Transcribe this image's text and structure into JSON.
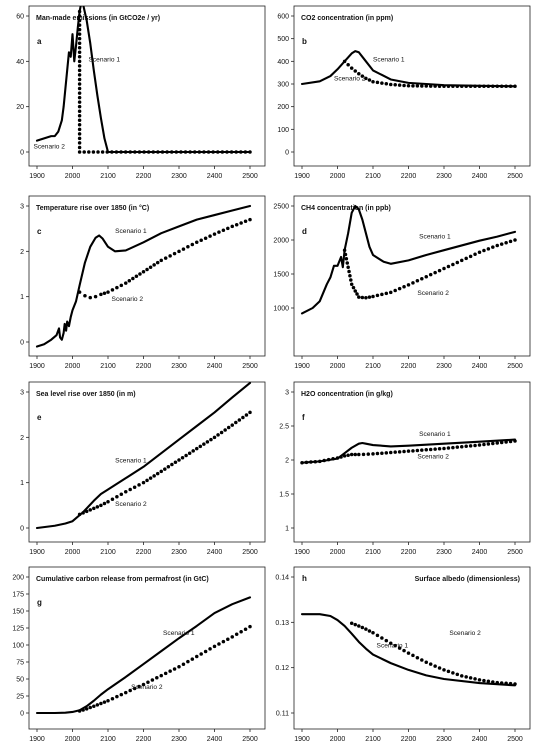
{
  "chart_data": [
    {
      "type": "line",
      "title": "Man-made emissions (in GtCO2e / yr)",
      "panel": "a",
      "xlim": [
        1900,
        2500
      ],
      "ylim": [
        0,
        60
      ],
      "xticks": [
        1900,
        2000,
        2100,
        2200,
        2300,
        2400,
        2500
      ],
      "yticks": [
        0,
        20,
        40,
        60
      ],
      "series": [
        {
          "name": "Scenario 1",
          "style": "line",
          "x": [
            1900,
            1920,
            1940,
            1950,
            1960,
            1970,
            1975,
            1980,
            1985,
            1990,
            1995,
            2000,
            2005,
            2010,
            2015,
            2020,
            2025,
            2030,
            2040,
            2050,
            2060,
            2070,
            2080,
            2090,
            2100,
            2500
          ],
          "y": [
            5,
            6,
            7,
            7,
            9,
            14,
            20,
            28,
            36,
            44,
            42,
            52,
            40,
            47,
            55,
            62,
            66,
            65,
            58,
            48,
            36,
            25,
            15,
            6,
            0,
            0
          ]
        },
        {
          "name": "Scenario 2",
          "style": "dotted",
          "x": [
            2020,
            2020,
            2500
          ],
          "y": [
            62,
            0,
            0
          ]
        }
      ],
      "annotations": [
        {
          "text": "Scenario 1",
          "x": 2045,
          "y": 40
        },
        {
          "text": "Scenario 2",
          "x": 1890,
          "y": 1.5
        }
      ]
    },
    {
      "type": "line",
      "title": "CO2 concentration (in ppm)",
      "panel": "b",
      "xlim": [
        1900,
        2500
      ],
      "ylim": [
        0,
        600
      ],
      "xticks": [
        1900,
        2000,
        2100,
        2200,
        2300,
        2400,
        2500
      ],
      "yticks": [
        0,
        100,
        200,
        300,
        400,
        500,
        600
      ],
      "series": [
        {
          "name": "Scenario 1",
          "style": "line",
          "x": [
            1900,
            1950,
            1980,
            2000,
            2020,
            2040,
            2050,
            2060,
            2075,
            2100,
            2150,
            2200,
            2300,
            2400,
            2500
          ],
          "y": [
            300,
            312,
            335,
            365,
            400,
            435,
            445,
            440,
            410,
            360,
            320,
            305,
            295,
            292,
            290
          ]
        },
        {
          "name": "Scenario 2",
          "style": "dotted",
          "x": [
            2020,
            2040,
            2060,
            2080,
            2100,
            2150,
            2200,
            2300,
            2400,
            2500
          ],
          "y": [
            400,
            370,
            345,
            325,
            310,
            298,
            292,
            290,
            290,
            290
          ]
        }
      ],
      "annotations": [
        {
          "text": "Scenario 1",
          "x": 2100,
          "y": 400
        },
        {
          "text": "Scenario 2",
          "x": 1990,
          "y": 315
        }
      ]
    },
    {
      "type": "line",
      "title": "Temperature rise over 1850 (in °C)",
      "panel": "c",
      "xlim": [
        1900,
        2500
      ],
      "ylim": [
        0,
        3
      ],
      "xticks": [
        1900,
        2000,
        2100,
        2200,
        2300,
        2400,
        2500
      ],
      "yticks": [
        0,
        1,
        2,
        3
      ],
      "series": [
        {
          "name": "Scenario 1",
          "style": "line",
          "x": [
            1900,
            1920,
            1940,
            1955,
            1962,
            1965,
            1970,
            1975,
            1978,
            1982,
            1985,
            1990,
            1995,
            2000,
            2010,
            2020,
            2035,
            2050,
            2065,
            2075,
            2085,
            2100,
            2120,
            2150,
            2200,
            2250,
            2300,
            2350,
            2400,
            2450,
            2500
          ],
          "y": [
            -0.1,
            -0.05,
            0.05,
            0.15,
            0.3,
            0.1,
            0.05,
            0.2,
            0.4,
            0.25,
            0.45,
            0.35,
            0.55,
            0.7,
            0.9,
            1.25,
            1.75,
            2.1,
            2.3,
            2.35,
            2.28,
            2.1,
            2.0,
            2.02,
            2.2,
            2.4,
            2.55,
            2.7,
            2.8,
            2.9,
            3.0
          ]
        },
        {
          "name": "Scenario 2",
          "style": "dotted",
          "x": [
            2020,
            2035,
            2050,
            2065,
            2080,
            2100,
            2150,
            2200,
            2250,
            2300,
            2350,
            2400,
            2450,
            2500
          ],
          "y": [
            1.1,
            1.02,
            0.98,
            1.0,
            1.05,
            1.1,
            1.3,
            1.55,
            1.8,
            2.0,
            2.2,
            2.38,
            2.55,
            2.7
          ]
        }
      ],
      "annotations": [
        {
          "text": "Scenario 1",
          "x": 2120,
          "y": 2.4
        },
        {
          "text": "Scenario 2",
          "x": 2110,
          "y": 0.9
        }
      ]
    },
    {
      "type": "line",
      "title": "CH4 concentration (in ppb)",
      "panel": "d",
      "xlim": [
        1900,
        2500
      ],
      "ylim": [
        500,
        2500
      ],
      "xticks": [
        1900,
        2000,
        2100,
        2200,
        2300,
        2400,
        2500
      ],
      "yticks": [
        1000,
        1500,
        2000,
        2500
      ],
      "series": [
        {
          "name": "Scenario 1",
          "style": "line",
          "x": [
            1900,
            1930,
            1950,
            1970,
            1980,
            1990,
            2000,
            2010,
            2015,
            2020,
            2030,
            2040,
            2050,
            2060,
            2070,
            2080,
            2090,
            2100,
            2130,
            2150,
            2200,
            2250,
            2300,
            2350,
            2400,
            2450,
            2500
          ],
          "y": [
            920,
            1000,
            1100,
            1350,
            1450,
            1620,
            1620,
            1750,
            1600,
            1850,
            2100,
            2400,
            2500,
            2450,
            2300,
            2100,
            1900,
            1780,
            1680,
            1650,
            1700,
            1780,
            1850,
            1920,
            1990,
            2050,
            2120
          ]
        },
        {
          "name": "Scenario 2",
          "style": "dotted",
          "x": [
            2020,
            2030,
            2040,
            2050,
            2060,
            2080,
            2100,
            2150,
            2200,
            2250,
            2300,
            2350,
            2400,
            2450,
            2500
          ],
          "y": [
            1850,
            1600,
            1350,
            1250,
            1160,
            1150,
            1170,
            1230,
            1340,
            1460,
            1580,
            1700,
            1820,
            1920,
            2000
          ]
        }
      ],
      "annotations": [
        {
          "text": "Scenario 1",
          "x": 2230,
          "y": 2020
        },
        {
          "text": "Scenario 2",
          "x": 2225,
          "y": 1190
        }
      ]
    },
    {
      "type": "line",
      "title": "Sea level rise over 1850 (in m)",
      "panel": "e",
      "xlim": [
        1900,
        2500
      ],
      "ylim": [
        0,
        3
      ],
      "xticks": [
        1900,
        2000,
        2100,
        2200,
        2300,
        2400,
        2500
      ],
      "yticks": [
        0,
        1,
        2,
        3
      ],
      "series": [
        {
          "name": "Scenario 1",
          "style": "line",
          "x": [
            1900,
            1950,
            1980,
            2000,
            2030,
            2060,
            2080,
            2100,
            2150,
            2200,
            2250,
            2300,
            2350,
            2400,
            2450,
            2500
          ],
          "y": [
            0.0,
            0.05,
            0.1,
            0.15,
            0.35,
            0.6,
            0.75,
            0.85,
            1.1,
            1.35,
            1.65,
            1.95,
            2.25,
            2.55,
            2.88,
            3.2
          ]
        },
        {
          "name": "Scenario 2",
          "style": "dotted",
          "x": [
            2020,
            2050,
            2080,
            2100,
            2150,
            2200,
            2250,
            2300,
            2350,
            2400,
            2450,
            2500
          ],
          "y": [
            0.3,
            0.4,
            0.5,
            0.58,
            0.8,
            1.0,
            1.25,
            1.5,
            1.75,
            2.0,
            2.27,
            2.55
          ]
        }
      ],
      "annotations": [
        {
          "text": "Scenario 1",
          "x": 2120,
          "y": 1.45
        },
        {
          "text": "Scenario 2",
          "x": 2120,
          "y": 0.48
        }
      ]
    },
    {
      "type": "line",
      "title": "H2O concentration (in g/kg)",
      "panel": "f",
      "xlim": [
        1900,
        2500
      ],
      "ylim": [
        1.0,
        3.0
      ],
      "xticks": [
        1900,
        2000,
        2100,
        2200,
        2300,
        2400,
        2500
      ],
      "yticks": [
        1.0,
        1.5,
        2.0,
        2.5,
        3.0
      ],
      "series": [
        {
          "name": "Scenario 1",
          "style": "line",
          "x": [
            1900,
            1950,
            2000,
            2020,
            2040,
            2060,
            2070,
            2080,
            2100,
            2150,
            2200,
            2300,
            2400,
            2500
          ],
          "y": [
            1.96,
            1.98,
            2.02,
            2.1,
            2.18,
            2.24,
            2.25,
            2.24,
            2.22,
            2.2,
            2.21,
            2.24,
            2.27,
            2.3
          ]
        },
        {
          "name": "Scenario 2",
          "style": "dotted",
          "x": [
            1900,
            1950,
            2000,
            2020,
            2040,
            2060,
            2100,
            2150,
            2200,
            2300,
            2400,
            2500
          ],
          "y": [
            1.96,
            1.98,
            2.03,
            2.06,
            2.08,
            2.08,
            2.09,
            2.11,
            2.13,
            2.17,
            2.22,
            2.28
          ]
        }
      ],
      "annotations": [
        {
          "text": "Scenario 1",
          "x": 2230,
          "y": 2.35
        },
        {
          "text": "Scenario 2",
          "x": 2225,
          "y": 2.02
        }
      ]
    },
    {
      "type": "line",
      "title": "Cumulative carbon release from permafrost (in GtC)",
      "panel": "g",
      "xlim": [
        1900,
        2500
      ],
      "ylim": [
        0,
        200
      ],
      "xticks": [
        1900,
        2000,
        2100,
        2200,
        2300,
        2400,
        2500
      ],
      "yticks": [
        0,
        25,
        50,
        75,
        100,
        125,
        150,
        175,
        200
      ],
      "series": [
        {
          "name": "Scenario 1",
          "style": "line",
          "x": [
            1900,
            1950,
            1980,
            2000,
            2020,
            2040,
            2060,
            2080,
            2100,
            2150,
            2200,
            2250,
            2300,
            2350,
            2400,
            2450,
            2500
          ],
          "y": [
            0,
            0,
            0.5,
            1.5,
            4,
            10,
            18,
            27,
            35,
            53,
            72,
            91,
            110,
            128,
            147,
            160,
            170
          ]
        },
        {
          "name": "Scenario 2",
          "style": "dotted",
          "x": [
            2020,
            2040,
            2060,
            2080,
            2100,
            2150,
            2200,
            2250,
            2300,
            2350,
            2400,
            2450,
            2500
          ],
          "y": [
            3,
            6,
            10,
            14,
            18,
            30,
            42,
            55,
            68,
            83,
            98,
            112,
            127
          ]
        }
      ],
      "annotations": [
        {
          "text": "Scenario 1",
          "x": 2255,
          "y": 115
        },
        {
          "text": "Scenario 2",
          "x": 2165,
          "y": 35
        }
      ]
    },
    {
      "type": "line",
      "title": "Surface albedo (dimensionless)",
      "panel": "h",
      "xlim": [
        1900,
        2500
      ],
      "ylim": [
        0.11,
        0.14
      ],
      "xticks": [
        1900,
        2000,
        2100,
        2200,
        2300,
        2400,
        2500
      ],
      "yticks": [
        0.11,
        0.12,
        0.13,
        0.14
      ],
      "series": [
        {
          "name": "Scenario 1",
          "style": "line",
          "x": [
            1900,
            1950,
            1980,
            2000,
            2020,
            2040,
            2060,
            2080,
            2100,
            2150,
            2200,
            2250,
            2300,
            2400,
            2500
          ],
          "y": [
            0.1318,
            0.1318,
            0.1314,
            0.1305,
            0.1292,
            0.1275,
            0.1257,
            0.1242,
            0.1229,
            0.121,
            0.1195,
            0.1183,
            0.1175,
            0.1166,
            0.1161
          ]
        },
        {
          "name": "Scenario 2",
          "style": "dotted",
          "x": [
            2040,
            2060,
            2080,
            2100,
            2150,
            2200,
            2250,
            2300,
            2350,
            2400,
            2450,
            2500
          ],
          "y": [
            0.1298,
            0.1292,
            0.1285,
            0.1277,
            0.1254,
            0.1232,
            0.1212,
            0.1195,
            0.1182,
            0.1173,
            0.1167,
            0.1164
          ]
        }
      ],
      "annotations": [
        {
          "text": "Scenario 1",
          "x": 2110,
          "y": 0.1245
        },
        {
          "text": "Scenario 2",
          "x": 2315,
          "y": 0.1272
        }
      ]
    }
  ]
}
